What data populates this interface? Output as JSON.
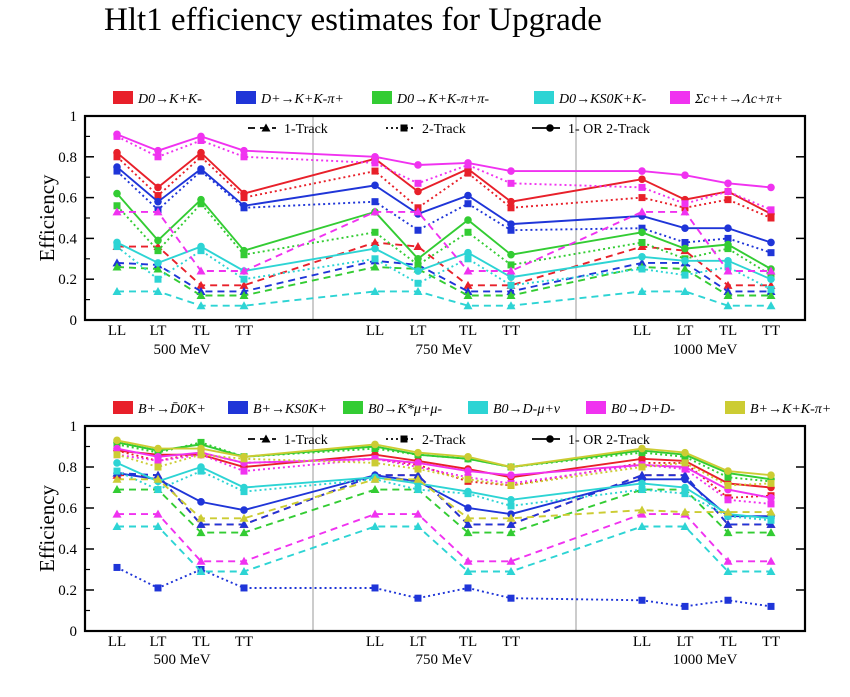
{
  "page_title": "Hlt1 efficiency estimates for Upgrade",
  "chart_data": [
    {
      "type": "line",
      "ylabel": "Efficiency",
      "ylim": [
        0,
        1
      ],
      "yticks": [
        "0",
        "0.2",
        "0.4",
        "0.6",
        "0.8",
        "1"
      ],
      "categories": [
        "LL",
        "LT",
        "TL",
        "TT",
        "LL",
        "LT",
        "TL",
        "TT",
        "LL",
        "LT",
        "TL",
        "TT"
      ],
      "groups": [
        "500 MeV",
        "750 MeV",
        "1000 MeV"
      ],
      "legend_position": "top",
      "line_styles": [
        {
          "label": "1-Track",
          "dash": "dashed",
          "marker": "triangle"
        },
        {
          "label": "2-Track",
          "dash": "dotted",
          "marker": "square"
        },
        {
          "label": "1- OR 2-Track",
          "dash": "solid",
          "marker": "circle"
        }
      ],
      "series": [
        {
          "name": "D0→K+K-",
          "color": "#e8202a",
          "one_track": [
            0.36,
            0.36,
            0.17,
            0.17,
            0.38,
            0.36,
            0.17,
            0.17,
            0.36,
            0.34,
            0.17,
            0.17
          ],
          "two_track": [
            0.8,
            0.61,
            0.8,
            0.6,
            0.73,
            0.55,
            0.72,
            0.55,
            0.6,
            0.55,
            0.59,
            0.5
          ],
          "or_track": [
            0.82,
            0.65,
            0.82,
            0.62,
            0.79,
            0.63,
            0.74,
            0.58,
            0.69,
            0.59,
            0.63,
            0.52
          ]
        },
        {
          "name": "D+→K+K-π+",
          "color": "#1f35d8",
          "one_track": [
            0.28,
            0.27,
            0.14,
            0.14,
            0.29,
            0.27,
            0.14,
            0.14,
            0.28,
            0.28,
            0.14,
            0.14
          ],
          "two_track": [
            0.73,
            0.54,
            0.73,
            0.55,
            0.58,
            0.44,
            0.57,
            0.44,
            0.45,
            0.38,
            0.4,
            0.33
          ],
          "or_track": [
            0.75,
            0.58,
            0.74,
            0.56,
            0.66,
            0.52,
            0.61,
            0.47,
            0.51,
            0.45,
            0.45,
            0.38
          ]
        },
        {
          "name": "D0→K+K-π+π-",
          "color": "#33cc33",
          "one_track": [
            0.26,
            0.25,
            0.12,
            0.12,
            0.26,
            0.25,
            0.12,
            0.12,
            0.26,
            0.25,
            0.12,
            0.12
          ],
          "two_track": [
            0.56,
            0.34,
            0.57,
            0.32,
            0.43,
            0.27,
            0.43,
            0.27,
            0.38,
            0.3,
            0.35,
            0.22
          ],
          "or_track": [
            0.62,
            0.39,
            0.59,
            0.34,
            0.53,
            0.3,
            0.49,
            0.32,
            0.43,
            0.35,
            0.37,
            0.25
          ]
        },
        {
          "name": "D0→KS0K+K-",
          "color": "#2dd4d4",
          "one_track": [
            0.14,
            0.14,
            0.07,
            0.07,
            0.14,
            0.14,
            0.07,
            0.07,
            0.14,
            0.14,
            0.07,
            0.07
          ],
          "two_track": [
            0.36,
            0.2,
            0.34,
            0.2,
            0.3,
            0.18,
            0.3,
            0.17,
            0.25,
            0.22,
            0.26,
            0.15
          ],
          "or_track": [
            0.38,
            0.28,
            0.36,
            0.24,
            0.35,
            0.24,
            0.33,
            0.21,
            0.31,
            0.29,
            0.29,
            0.2
          ]
        },
        {
          "name": "Σc++→Λc+π+",
          "color": "#f032f0",
          "one_track": [
            0.53,
            0.53,
            0.24,
            0.24,
            0.53,
            0.53,
            0.24,
            0.24,
            0.53,
            0.53,
            0.24,
            0.24
          ],
          "two_track": [
            0.9,
            0.8,
            0.88,
            0.8,
            0.77,
            0.67,
            0.76,
            0.67,
            0.65,
            0.57,
            0.63,
            0.54
          ],
          "or_track": [
            0.91,
            0.83,
            0.9,
            0.83,
            0.8,
            0.76,
            0.77,
            0.73,
            0.73,
            0.71,
            0.67,
            0.65
          ]
        }
      ]
    },
    {
      "type": "line",
      "ylabel": "Efficiency",
      "ylim": [
        0,
        1
      ],
      "yticks": [
        "0",
        "0.2",
        "0.4",
        "0.6",
        "0.8",
        "1"
      ],
      "categories": [
        "LL",
        "LT",
        "TL",
        "TT",
        "LL",
        "LT",
        "TL",
        "TT",
        "LL",
        "LT",
        "TL",
        "TT"
      ],
      "groups": [
        "500 MeV",
        "750 MeV",
        "1000 MeV"
      ],
      "legend_position": "top",
      "line_styles": [
        {
          "label": "1-Track",
          "dash": "dashed",
          "marker": "triangle"
        },
        {
          "label": "2-Track",
          "dash": "dotted",
          "marker": "square"
        },
        {
          "label": "1- OR 2-Track",
          "dash": "solid",
          "marker": "circle"
        }
      ],
      "series": [
        {
          "name": "B+→D̄0K+",
          "color": "#e8202a",
          "one_track": [
            0.76,
            0.76,
            0.52,
            0.52,
            0.76,
            0.76,
            0.52,
            0.52,
            0.76,
            0.76,
            0.52,
            0.52
          ],
          "two_track": [
            0.88,
            0.83,
            0.87,
            0.82,
            0.84,
            0.81,
            0.73,
            0.71,
            0.82,
            0.82,
            0.65,
            0.66
          ],
          "or_track": [
            0.88,
            0.86,
            0.86,
            0.8,
            0.86,
            0.83,
            0.79,
            0.75,
            0.84,
            0.83,
            0.72,
            0.7
          ]
        },
        {
          "name": "B+→KS0K+",
          "color": "#1f35d8",
          "one_track": [
            0.77,
            0.76,
            0.52,
            0.52,
            0.76,
            0.76,
            0.52,
            0.52,
            0.76,
            0.76,
            0.52,
            0.52
          ],
          "two_track": [
            0.31,
            0.21,
            0.3,
            0.21,
            0.21,
            0.16,
            0.21,
            0.16,
            0.15,
            0.12,
            0.15,
            0.12
          ],
          "or_track": [
            0.77,
            0.74,
            0.63,
            0.59,
            0.76,
            0.73,
            0.6,
            0.57,
            0.74,
            0.74,
            0.56,
            0.56
          ]
        },
        {
          "name": "B0→K*μ+μ-",
          "color": "#33cc33",
          "one_track": [
            0.69,
            0.69,
            0.48,
            0.48,
            0.69,
            0.69,
            0.48,
            0.48,
            0.69,
            0.69,
            0.48,
            0.48
          ],
          "two_track": [
            0.91,
            0.87,
            0.92,
            0.85,
            0.89,
            0.86,
            0.84,
            0.8,
            0.87,
            0.85,
            0.75,
            0.73
          ],
          "or_track": [
            0.92,
            0.88,
            0.91,
            0.85,
            0.9,
            0.86,
            0.84,
            0.8,
            0.88,
            0.86,
            0.77,
            0.74
          ]
        },
        {
          "name": "B0→D-μ+ν",
          "color": "#2dd4d4",
          "one_track": [
            0.51,
            0.51,
            0.29,
            0.29,
            0.51,
            0.51,
            0.29,
            0.29,
            0.51,
            0.51,
            0.29,
            0.29
          ],
          "two_track": [
            0.78,
            0.69,
            0.78,
            0.68,
            0.74,
            0.69,
            0.67,
            0.61,
            0.69,
            0.67,
            0.56,
            0.54
          ],
          "or_track": [
            0.82,
            0.73,
            0.8,
            0.7,
            0.75,
            0.72,
            0.68,
            0.64,
            0.72,
            0.7,
            0.57,
            0.55
          ]
        },
        {
          "name": "B0→D+D-",
          "color": "#f032f0",
          "one_track": [
            0.57,
            0.57,
            0.34,
            0.34,
            0.57,
            0.57,
            0.34,
            0.34,
            0.57,
            0.57,
            0.34,
            0.34
          ],
          "two_track": [
            0.86,
            0.83,
            0.86,
            0.78,
            0.84,
            0.8,
            0.75,
            0.72,
            0.81,
            0.79,
            0.64,
            0.62
          ],
          "or_track": [
            0.89,
            0.85,
            0.87,
            0.82,
            0.84,
            0.82,
            0.78,
            0.76,
            0.81,
            0.8,
            0.69,
            0.65
          ]
        },
        {
          "name": "B+→K+K-π+",
          "color": "#cccc33",
          "one_track": [
            0.74,
            0.74,
            0.55,
            0.55,
            0.74,
            0.74,
            0.55,
            0.55,
            0.59,
            0.58,
            0.58,
            0.58
          ],
          "two_track": [
            0.86,
            0.8,
            0.86,
            0.84,
            0.82,
            0.79,
            0.74,
            0.71,
            0.8,
            0.82,
            0.71,
            0.72
          ],
          "or_track": [
            0.93,
            0.89,
            0.89,
            0.85,
            0.91,
            0.87,
            0.85,
            0.8,
            0.89,
            0.87,
            0.78,
            0.76
          ]
        }
      ]
    }
  ]
}
